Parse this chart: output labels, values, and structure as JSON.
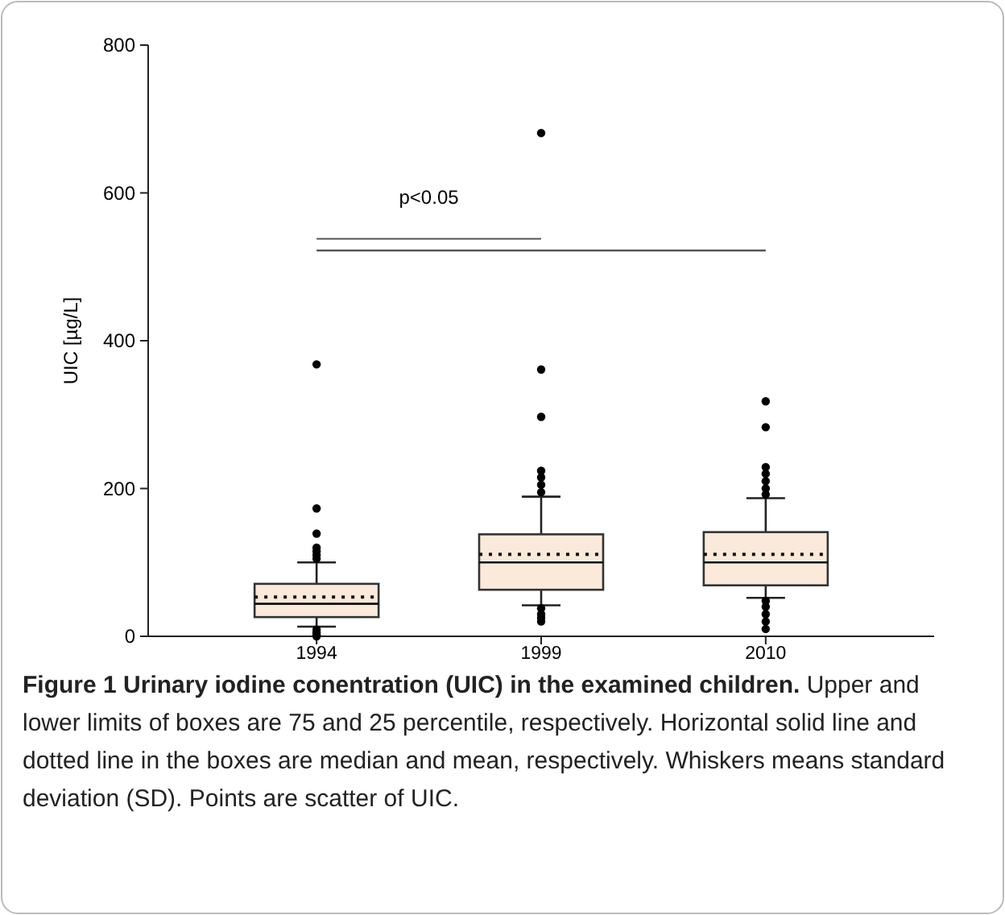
{
  "chart_data": {
    "type": "box",
    "ylabel": "UIC [µg/L]",
    "categories": [
      "1994",
      "1999",
      "2010"
    ],
    "color": "#fbeadb",
    "ylim": [
      0,
      800
    ],
    "yticks": [
      0,
      200,
      400,
      600,
      800
    ],
    "grid": false,
    "boxes": [
      {
        "low": 13,
        "q1": 26,
        "median": 44,
        "q3": 71,
        "high": 100,
        "mean": 53,
        "outliers": [
          368,
          173,
          139,
          120,
          115,
          110,
          105,
          9,
          5,
          2,
          0
        ]
      },
      {
        "low": 42,
        "q1": 63,
        "median": 100,
        "q3": 138,
        "high": 189,
        "mean": 111,
        "outliers": [
          681,
          361,
          297,
          224,
          215,
          205,
          195,
          38,
          30,
          25,
          20
        ]
      },
      {
        "low": 52,
        "q1": 69,
        "median": 100,
        "q3": 141,
        "high": 187,
        "mean": 111,
        "outliers": [
          318,
          283,
          229,
          220,
          210,
          200,
          192,
          48,
          40,
          30,
          20,
          10
        ]
      }
    ],
    "title": "Figure 1 Urinary iodine conentration (UIC) in the examined children.",
    "annotations": [
      "p<0.05",
      "Upper and lower limits of boxes are 75 and 25 percentile, respectively. Horizontal solid line and dotted line in the boxes are median and mean, respectively. Whiskers means standard deviation (SD). Points are scatter of UIC."
    ]
  }
}
